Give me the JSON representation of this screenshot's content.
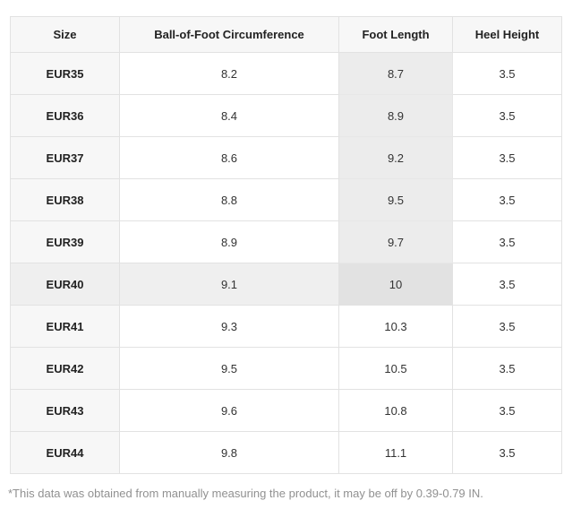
{
  "table": {
    "columns": [
      "Size",
      "Ball-of-Foot Circumference",
      "Foot Length",
      "Heel Height"
    ],
    "rows": [
      {
        "size": "EUR35",
        "ball": "8.2",
        "foot": "8.7",
        "heel": "3.5"
      },
      {
        "size": "EUR36",
        "ball": "8.4",
        "foot": "8.9",
        "heel": "3.5"
      },
      {
        "size": "EUR37",
        "ball": "8.6",
        "foot": "9.2",
        "heel": "3.5"
      },
      {
        "size": "EUR38",
        "ball": "8.8",
        "foot": "9.5",
        "heel": "3.5"
      },
      {
        "size": "EUR39",
        "ball": "8.9",
        "foot": "9.7",
        "heel": "3.5"
      },
      {
        "size": "EUR40",
        "ball": "9.1",
        "foot": "10",
        "heel": "3.5"
      },
      {
        "size": "EUR41",
        "ball": "9.3",
        "foot": "10.3",
        "heel": "3.5"
      },
      {
        "size": "EUR42",
        "ball": "9.5",
        "foot": "10.5",
        "heel": "3.5"
      },
      {
        "size": "EUR43",
        "ball": "9.6",
        "foot": "10.8",
        "heel": "3.5"
      },
      {
        "size": "EUR44",
        "ball": "9.8",
        "foot": "11.1",
        "heel": "3.5"
      }
    ],
    "highlight": {
      "row": "EUR40",
      "column": "Foot Length"
    }
  },
  "footnote": "*This data was obtained from manually measuring the product, it may be off by 0.39-0.79 IN.",
  "colors": {
    "header_bg": "#f7f7f7",
    "size_col_bg": "#f7f7f7",
    "col_highlight_bg": "#ececec",
    "row_highlight_bg": "#efefef",
    "cell_highlight_bg": "#e2e2e2",
    "border": "#e2e2e2",
    "text_strong": "#222222",
    "text": "#333333",
    "footnote_text": "#919191"
  }
}
